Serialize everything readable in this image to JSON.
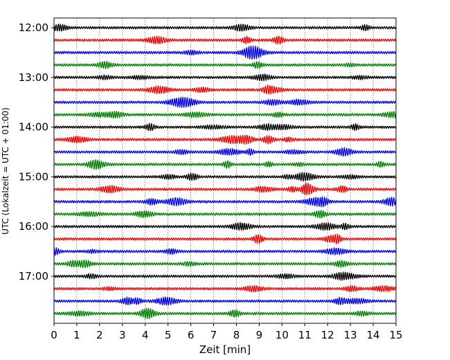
{
  "chart_data": {
    "type": "line",
    "title": "",
    "xlabel": "Zeit  [min]",
    "ylabel": "UTC (Lokalzeit = UTC + 01:00)",
    "xlim": [
      0,
      15
    ],
    "x_ticks": [
      0,
      1,
      2,
      3,
      4,
      5,
      6,
      7,
      8,
      9,
      10,
      11,
      12,
      13,
      14,
      15
    ],
    "y_tick_labels": [
      "12:00",
      "13:00",
      "14:00",
      "15:00",
      "16:00",
      "17:00"
    ],
    "grid": "vertical dotted",
    "legend": "none",
    "trace_interval_min": 15,
    "trace_colors": [
      "#000000",
      "#ff0000",
      "#0000ff",
      "#008000"
    ],
    "series": [
      {
        "start": "12:00",
        "color": "#000000"
      },
      {
        "start": "12:15",
        "color": "#ff0000"
      },
      {
        "start": "12:30",
        "color": "#0000ff"
      },
      {
        "start": "12:45",
        "color": "#008000"
      },
      {
        "start": "13:00",
        "color": "#000000"
      },
      {
        "start": "13:15",
        "color": "#ff0000"
      },
      {
        "start": "13:30",
        "color": "#0000ff"
      },
      {
        "start": "13:45",
        "color": "#008000"
      },
      {
        "start": "14:00",
        "color": "#000000"
      },
      {
        "start": "14:15",
        "color": "#ff0000"
      },
      {
        "start": "14:30",
        "color": "#0000ff"
      },
      {
        "start": "14:45",
        "color": "#008000"
      },
      {
        "start": "15:00",
        "color": "#000000"
      },
      {
        "start": "15:15",
        "color": "#ff0000"
      },
      {
        "start": "15:30",
        "color": "#0000ff"
      },
      {
        "start": "15:45",
        "color": "#008000"
      },
      {
        "start": "16:00",
        "color": "#000000"
      },
      {
        "start": "16:15",
        "color": "#ff0000"
      },
      {
        "start": "16:30",
        "color": "#0000ff"
      },
      {
        "start": "16:45",
        "color": "#008000"
      },
      {
        "start": "17:00",
        "color": "#000000"
      },
      {
        "start": "17:15",
        "color": "#ff0000"
      },
      {
        "start": "17:30",
        "color": "#0000ff"
      },
      {
        "start": "17:45",
        "color": "#008000"
      }
    ]
  }
}
